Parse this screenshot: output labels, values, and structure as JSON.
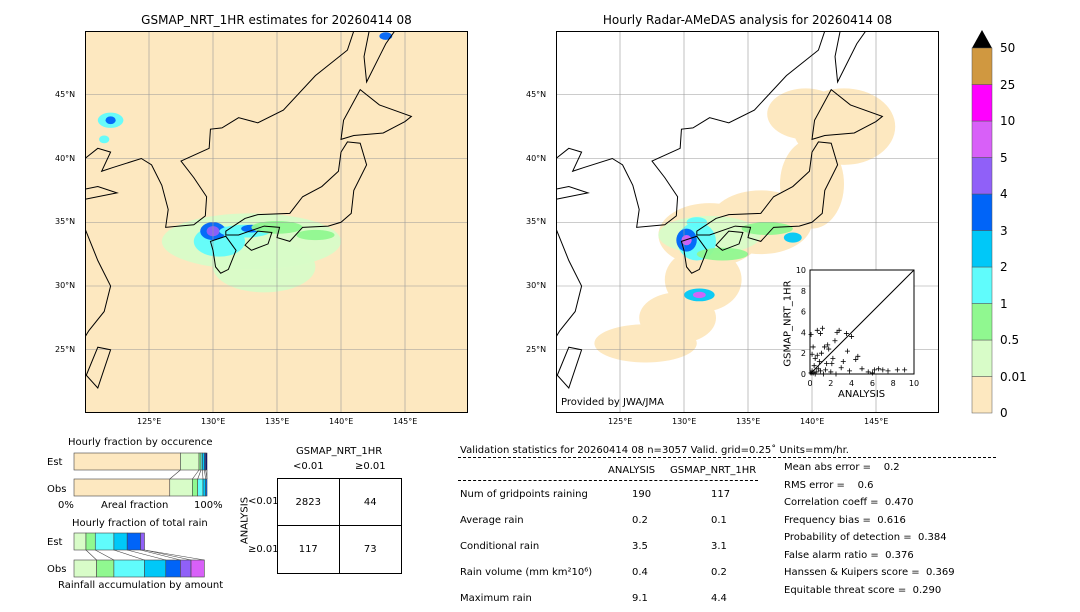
{
  "left_map": {
    "title": "GSMAP_NRT_1HR estimates for 20260414 08"
  },
  "right_map": {
    "title": "Hourly Radar-AMeDAS analysis for 20260414 08",
    "credit": "Provided by JWA/JMA"
  },
  "lon_ticks": [
    "125°E",
    "130°E",
    "135°E",
    "140°E",
    "145°E"
  ],
  "lat_ticks": [
    "45°N",
    "40°N",
    "35°N",
    "30°N",
    "25°N"
  ],
  "colorbar": {
    "labels": [
      "50",
      "25",
      "10",
      "5",
      "4",
      "3",
      "2",
      "1",
      "0.5",
      "0.01",
      "0"
    ],
    "colors": [
      "#fde8c0",
      "#d8fcc8",
      "#90f890",
      "#60fcfc",
      "#00c8f8",
      "#0064f8",
      "#9060f8",
      "#d860f8",
      "#ff00ff",
      "#d09840"
    ],
    "over_color": "#000000"
  },
  "chart_data": [
    {
      "type": "scatter",
      "xlabel": "ANALYSIS",
      "ylabel": "GSMAP_NRT_1HR",
      "xlim": [
        0,
        10
      ],
      "ylim": [
        0,
        10
      ],
      "xticks": [
        "0",
        "2",
        "4",
        "6",
        "8",
        "10"
      ],
      "yticks": [
        "0",
        "2",
        "4",
        "6",
        "8",
        "10"
      ],
      "points": [
        [
          0.1,
          0.1
        ],
        [
          0.2,
          0.3
        ],
        [
          0.3,
          0.1
        ],
        [
          0.4,
          0.8
        ],
        [
          0.5,
          1.5
        ],
        [
          0.6,
          0.2
        ],
        [
          0.7,
          1.8
        ],
        [
          0.8,
          0.5
        ],
        [
          0.9,
          1.2
        ],
        [
          1.0,
          0.3
        ],
        [
          1.1,
          2.0
        ],
        [
          1.2,
          4.4
        ],
        [
          1.0,
          3.9
        ],
        [
          0.7,
          4.2
        ],
        [
          1.4,
          2.6
        ],
        [
          1.5,
          0.4
        ],
        [
          1.6,
          1.0
        ],
        [
          1.8,
          2.4
        ],
        [
          2.0,
          0.2
        ],
        [
          2.2,
          1.5
        ],
        [
          2.4,
          3.2
        ],
        [
          2.6,
          4.0
        ],
        [
          2.8,
          4.2
        ],
        [
          3.0,
          0.6
        ],
        [
          3.2,
          1.2
        ],
        [
          3.5,
          3.9
        ],
        [
          3.6,
          2.2
        ],
        [
          3.8,
          0.3
        ],
        [
          4.0,
          3.6
        ],
        [
          4.4,
          1.4
        ],
        [
          4.6,
          1.7
        ],
        [
          5.0,
          0.5
        ],
        [
          5.6,
          0.2
        ],
        [
          6.0,
          0.1
        ],
        [
          6.2,
          0.4
        ],
        [
          6.6,
          0.5
        ],
        [
          7.0,
          0.4
        ],
        [
          7.5,
          0.3
        ],
        [
          8.4,
          0.4
        ],
        [
          9.1,
          0.4
        ],
        [
          0.3,
          2.6
        ],
        [
          0.2,
          1.9
        ],
        [
          0.5,
          0.0
        ],
        [
          1.3,
          0.0
        ],
        [
          2.5,
          0.0
        ],
        [
          0.1,
          3.8
        ],
        [
          1.7,
          2.8
        ],
        [
          2.1,
          1.0
        ]
      ]
    },
    {
      "type": "bar",
      "title": "Hourly fraction by occurence",
      "xlabel": "Areal fraction",
      "xtick_labels": [
        "0%",
        "100%"
      ],
      "categories": [
        "Est",
        "Obs"
      ],
      "series": [
        {
          "category": "Est",
          "fractions": [
            0.8,
            0.14,
            0.015,
            0.01,
            0.015,
            0.01,
            0.01
          ]
        },
        {
          "category": "Obs",
          "fractions": [
            0.72,
            0.17,
            0.04,
            0.04,
            0.02,
            0.01
          ]
        }
      ]
    },
    {
      "type": "bar",
      "title": "Hourly fraction of total rain",
      "xlabel": "Rainfall accumulation by amount",
      "categories": [
        "Est",
        "Obs"
      ],
      "series": [
        {
          "category": "Est",
          "fractions": [
            0.09,
            0.07,
            0.14,
            0.1,
            0.1,
            0.03
          ]
        },
        {
          "category": "Obs",
          "fractions": [
            0.17,
            0.13,
            0.23,
            0.16,
            0.11,
            0.08,
            0.1
          ]
        }
      ]
    }
  ],
  "contingency": {
    "title": "GSMAP_NRT_1HR",
    "col_labels": [
      "<0.01",
      "≥0.01"
    ],
    "row_axis": "ANALYSIS",
    "row_labels": [
      "<0.01",
      "≥0.01"
    ],
    "cells": [
      [
        "2823",
        "44"
      ],
      [
        "117",
        "73"
      ]
    ]
  },
  "stats": {
    "header": "Validation statistics for 20260414 08  n=3057 Valid. grid=0.25˚ Units=mm/hr.",
    "cols": [
      "ANALYSIS",
      "GSMAP_NRT_1HR"
    ],
    "rows": [
      {
        "label": "Num of gridpoints raining",
        "a": "190",
        "g": "117"
      },
      {
        "label": "Average rain",
        "a": "0.2",
        "g": "0.1"
      },
      {
        "label": "Conditional rain",
        "a": "3.5",
        "g": "3.1"
      },
      {
        "label": "Rain volume (mm km²10⁶)",
        "a": "0.4",
        "g": "0.2"
      },
      {
        "label": "Maximum rain",
        "a": "9.1",
        "g": "4.4"
      }
    ],
    "scores": [
      "Mean abs error =    0.2",
      "RMS error =    0.6",
      "Correlation coeff =  0.470",
      "Frequency bias =  0.616",
      "Probability of detection =  0.384",
      "False alarm ratio =  0.376",
      "Hanssen & Kuipers score =  0.369",
      "Equitable threat score =  0.290"
    ]
  }
}
